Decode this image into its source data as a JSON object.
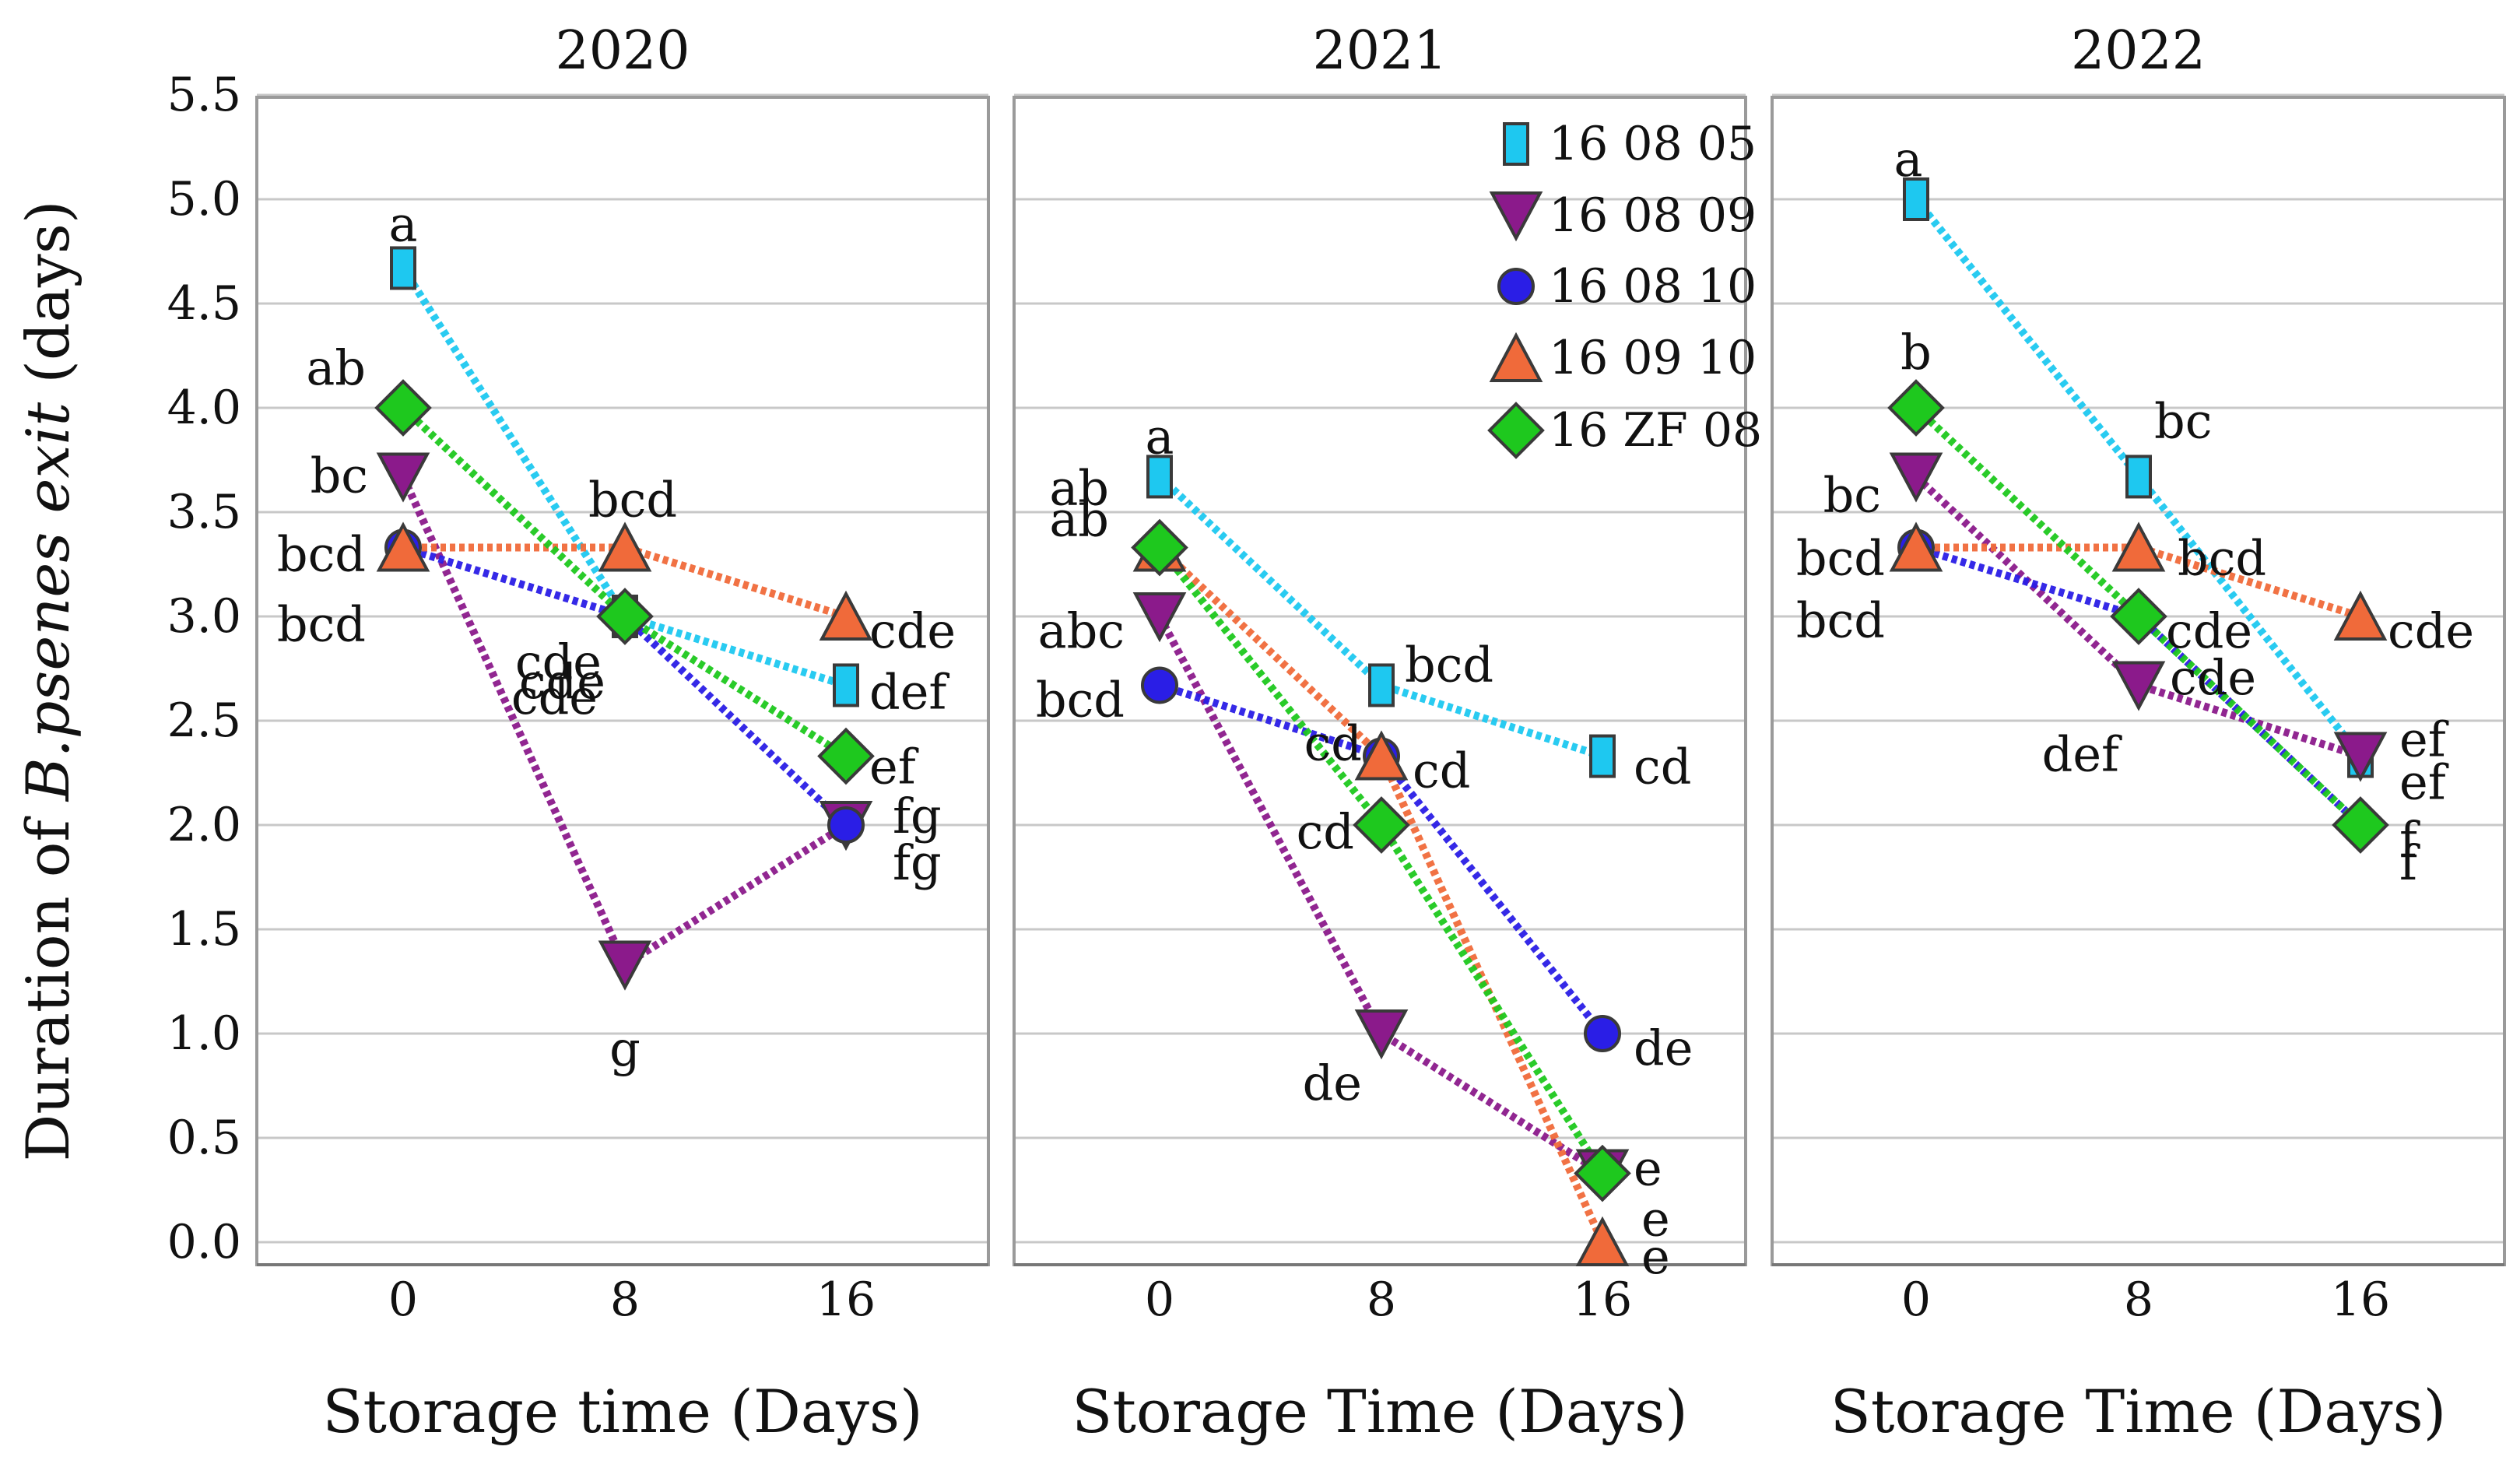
{
  "chart_data": {
    "type": "line",
    "ylabel_prefix": "Duration of ",
    "ylabel_italic": "B.psenes exit",
    "ylabel_suffix": " (days)",
    "yticks": [
      "5.5",
      "5.0",
      "4.5",
      "4.0",
      "3.5",
      "3.0",
      "2.5",
      "2.0",
      "1.5",
      "1.0",
      "0.5",
      "0.0"
    ],
    "ylim": [
      0,
      5.5
    ],
    "x": [
      0,
      8,
      16
    ],
    "xtick_labels": [
      "0",
      "8",
      "16"
    ],
    "series_meta": [
      {
        "name": "16 08 05",
        "color": "#1ec8f0",
        "marker": "rect"
      },
      {
        "name": "16 08 09",
        "color": "#8b1a8b",
        "marker": "triangle-down"
      },
      {
        "name": "16 08 10",
        "color": "#2a1ee6",
        "marker": "circle"
      },
      {
        "name": "16 09 10",
        "color": "#f06a3a",
        "marker": "triangle-up"
      },
      {
        "name": "16 ZF 08",
        "color": "#1ec81e",
        "marker": "diamond"
      }
    ],
    "panels": [
      {
        "title": "2020",
        "xlabel": "Storage time (Days)",
        "series": [
          {
            "name": "16 08 05",
            "values": [
              4.67,
              3.0,
              2.67
            ],
            "letters": [
              "a",
              "cde",
              "def"
            ]
          },
          {
            "name": "16 08 09",
            "values": [
              3.67,
              1.33,
              2.0
            ],
            "letters": [
              "bc",
              "g",
              "fg"
            ]
          },
          {
            "name": "16 08 10",
            "values": [
              3.33,
              3.0,
              2.0
            ],
            "letters": [
              "bcd",
              "cde",
              "fg"
            ]
          },
          {
            "name": "16 09 10",
            "values": [
              3.33,
              3.33,
              3.0
            ],
            "letters": [
              "bcd",
              "bcd",
              "cde"
            ]
          },
          {
            "name": "16 ZF 08",
            "values": [
              4.0,
              3.0,
              2.33
            ],
            "letters": [
              "ab",
              "cde",
              "ef"
            ]
          }
        ]
      },
      {
        "title": "2021",
        "xlabel": "Storage Time (Days)",
        "series": [
          {
            "name": "16 08 05",
            "values": [
              3.67,
              2.67,
              2.33
            ],
            "letters": [
              "a",
              "bcd",
              "cd"
            ]
          },
          {
            "name": "16 08 09",
            "values": [
              3.0,
              1.0,
              0.33
            ],
            "letters": [
              "abc",
              "de",
              "e"
            ]
          },
          {
            "name": "16 08 10",
            "values": [
              2.67,
              2.33,
              1.0
            ],
            "letters": [
              "bcd",
              "cd",
              "de"
            ]
          },
          {
            "name": "16 09 10",
            "values": [
              3.33,
              2.33,
              0.0
            ],
            "letters": [
              "ab",
              "cd",
              "e"
            ]
          },
          {
            "name": "16 ZF 08",
            "values": [
              3.33,
              2.0,
              0.33
            ],
            "letters": [
              "ab",
              "cd",
              "e"
            ]
          }
        ]
      },
      {
        "title": "2022",
        "xlabel": "Storage Time (Days)",
        "series": [
          {
            "name": "16 08 05",
            "values": [
              5.0,
              3.67,
              2.33
            ],
            "letters": [
              "a",
              "bc",
              "ef"
            ]
          },
          {
            "name": "16 08 09",
            "values": [
              3.67,
              2.67,
              2.33
            ],
            "letters": [
              "bc",
              "def",
              "ef"
            ]
          },
          {
            "name": "16 08 10",
            "values": [
              3.33,
              3.0,
              2.0
            ],
            "letters": [
              "bcd",
              "cde",
              "f"
            ]
          },
          {
            "name": "16 09 10",
            "values": [
              3.33,
              3.33,
              3.0
            ],
            "letters": [
              "bcd",
              "bcd",
              "cde"
            ]
          },
          {
            "name": "16 ZF 08",
            "values": [
              4.0,
              3.0,
              2.0
            ],
            "letters": [
              "b",
              "cde",
              "f"
            ]
          }
        ]
      }
    ]
  }
}
